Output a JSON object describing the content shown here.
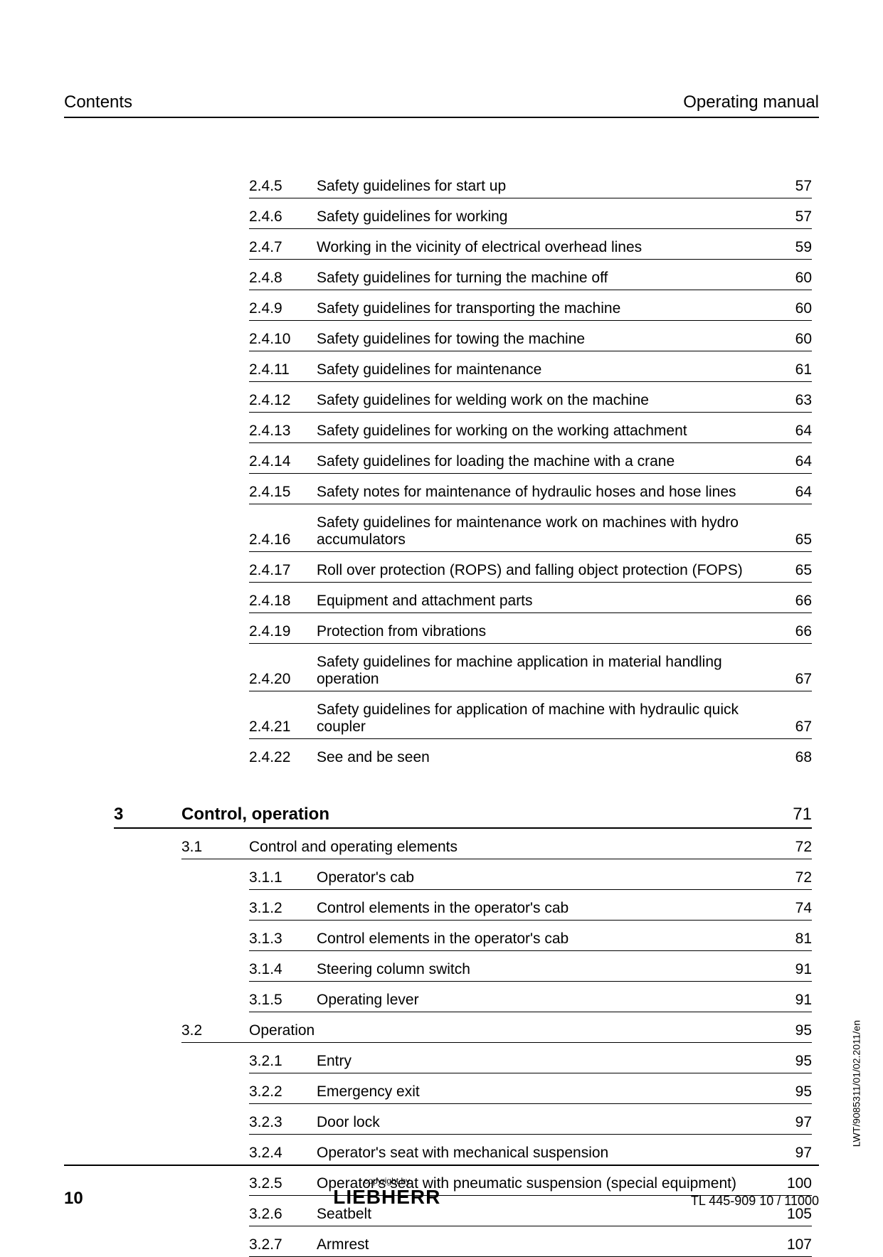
{
  "header": {
    "left": "Contents",
    "right": "Operating manual"
  },
  "sideref": "LWT/9085311/01/02.2011/en",
  "footer": {
    "page_number": "10",
    "copyright": "copyright by",
    "brand": "LIEBHERR",
    "docid": "TL 445-909 10 / 11000"
  },
  "toc_subs_a": [
    {
      "num": "2.4.5",
      "title": "Safety guidelines for start up",
      "page": "57"
    },
    {
      "num": "2.4.6",
      "title": "Safety guidelines for working",
      "page": "57"
    },
    {
      "num": "2.4.7",
      "title": "Working in the vicinity of electrical overhead lines",
      "page": "59"
    },
    {
      "num": "2.4.8",
      "title": "Safety guidelines for turning the machine off",
      "page": "60"
    },
    {
      "num": "2.4.9",
      "title": "Safety guidelines for transporting the machine",
      "page": "60"
    },
    {
      "num": "2.4.10",
      "title": "Safety guidelines for towing the machine",
      "page": "60"
    },
    {
      "num": "2.4.11",
      "title": "Safety guidelines for maintenance",
      "page": "61"
    },
    {
      "num": "2.4.12",
      "title": "Safety guidelines for welding work on the machine",
      "page": "63"
    },
    {
      "num": "2.4.13",
      "title": "Safety guidelines for working on the working attachment",
      "page": "64"
    },
    {
      "num": "2.4.14",
      "title": "Safety guidelines for loading the machine with a crane",
      "page": "64"
    },
    {
      "num": "2.4.15",
      "title": "Safety notes for maintenance of hydraulic hoses and hose lines",
      "page": "64"
    },
    {
      "num": "2.4.16",
      "title": "Safety guidelines for maintenance work on machines with hydro accumulators",
      "page": "65"
    },
    {
      "num": "2.4.17",
      "title": "Roll over protection (ROPS) and falling object protection (FOPS)",
      "page": "65"
    },
    {
      "num": "2.4.18",
      "title": "Equipment and attachment parts",
      "page": "66"
    },
    {
      "num": "2.4.19",
      "title": "Protection from vibrations",
      "page": "66"
    },
    {
      "num": "2.4.20",
      "title": "Safety guidelines for machine application in material handling operation",
      "page": "67"
    },
    {
      "num": "2.4.21",
      "title": "Safety guidelines for application of machine with hydraulic quick coupler",
      "page": "67"
    },
    {
      "num": "2.4.22",
      "title": "See and be seen",
      "page": "68"
    }
  ],
  "chapter": {
    "num": "3",
    "title": "Control, operation",
    "page": "71"
  },
  "section_3_1": {
    "num": "3.1",
    "title": "Control and operating elements",
    "page": "72"
  },
  "subs_3_1": [
    {
      "num": "3.1.1",
      "title": "Operator's cab",
      "page": "72"
    },
    {
      "num": "3.1.2",
      "title": "Control elements in the operator's cab",
      "page": "74"
    },
    {
      "num": "3.1.3",
      "title": "Control elements in the operator's cab",
      "page": "81"
    },
    {
      "num": "3.1.4",
      "title": "Steering column switch",
      "page": "91"
    },
    {
      "num": "3.1.5",
      "title": "Operating lever",
      "page": "91"
    }
  ],
  "section_3_2": {
    "num": "3.2",
    "title": "Operation",
    "page": "95"
  },
  "subs_3_2": [
    {
      "num": "3.2.1",
      "title": "Entry",
      "page": "95"
    },
    {
      "num": "3.2.2",
      "title": "Emergency exit",
      "page": "95"
    },
    {
      "num": "3.2.3",
      "title": "Door lock",
      "page": "97"
    },
    {
      "num": "3.2.4",
      "title": "Operator's seat with mechanical suspension",
      "page": "97"
    },
    {
      "num": "3.2.5",
      "title": "Operator's seat with pneumatic suspension (special equipment)",
      "page": "100"
    },
    {
      "num": "3.2.6",
      "title": "Seatbelt",
      "page": "105"
    },
    {
      "num": "3.2.7",
      "title": "Armrest",
      "page": "107"
    }
  ]
}
